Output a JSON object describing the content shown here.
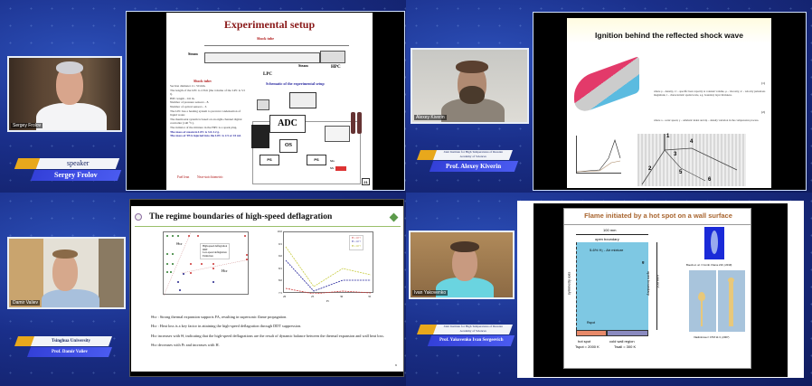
{
  "panels": [
    {
      "participant": "Sergey Frolov",
      "role": "speaker",
      "name_plate": "Sergey Frolov",
      "slide": {
        "title": "Experimental setup",
        "subtitle": "Shock tube",
        "labels": [
          "Steam",
          "LPC",
          "Steam",
          "HPC"
        ],
        "schematic_title": "Schematic of the experimental setup",
        "list_title": "Shock tube:",
        "bullets": [
          "Section diameter d = 50 mm.",
          "The length of the LPC is 2.8 m (the volume of the LPC is 5.5 l).",
          "HPC length - 0.6 m.",
          "Number of pressure sensors - 8.",
          "Number of optical sensors - 3.",
          "The LPC has a heating system to prevent condensation of liquid water.",
          "The thermostat system is based on an eight-channel digital controller (140 °C).",
          "The initiator of the mixture in the HPC is a spark plug.",
          "The mass of steam in LPC is 3.0-3.2 g.",
          "The mass of TEA injected into the LPC is 2.5 or 10 ml."
        ],
        "notes": [
          "Fuel lean",
          "Near-stoichiometric"
        ],
        "boxes": [
          "ADC",
          "OS",
          "PS",
          "PS"
        ],
        "sensor_labels": [
          "SG",
          "SS"
        ],
        "page": "21"
      }
    },
    {
      "participant": "Alexey Kiverin",
      "affiliation": "Joint Institute for High Temperatures of Russian Academy of Sciences",
      "name_plate": "Prof. Alexey Kiverin",
      "slide": {
        "title": "Ignition behind the reflected shock wave",
        "eq_numbers": [
          "(1)",
          "(2)"
        ],
        "text1": "where ρ – density, cv – specific heat capacity at constant volume, μ – viscosity, u' – velocity pulsations magnitude, l – characteristic spatial scale, e.g. boundary layer thickness.",
        "text2": "where a – sonic speed, γ – adiabatic index and dρ – density variation in the compression process.",
        "markers": [
          "1",
          "2",
          "3",
          "4",
          "5",
          "6"
        ]
      }
    },
    {
      "participant": "Damir Valiev",
      "affiliation": "Tsinghua University",
      "name_plate": "Prof. Damir Valiev",
      "slide": {
        "title": "The regime boundaries of high-speed deflagration",
        "legend1": [
          "High-speed deflagration",
          "DDT",
          "Low-speed deflagration",
          "Extinction"
        ],
        "legend2": [
          "H = 10⁻¹",
          "H = 10⁻²",
          "H = 10⁻³"
        ],
        "xticks2": [
          "20",
          "25",
          "30",
          "35"
        ],
        "xlabel2": "Pr",
        "yticks2": [
          "10.0",
          "9.5",
          "9.0",
          "8.5",
          "8.0",
          "7.5"
        ],
        "annot": [
          "Θcr",
          "Hcr"
        ],
        "bullets": [
          "Θcr : Strong thermal expansion supports FA, resulting in supersonic flame propagation.",
          "Hcr : Heat loss is a key factor in attaining the high-speed deflagration through DDT suppression.",
          "Hcr increases with Θ, indicating that the high-speed deflagrations are the result of dynamic balance between the thermal expansion and wall heat loss.",
          "Θcr decreases with Pr and increases with H."
        ],
        "page": "9"
      }
    },
    {
      "participant": "Ivan Yakovenko",
      "affiliation": "Joint Institute for High Temperatures of Russian Academy of Sciences",
      "name_plate": "Prof. Yakovenko Ivan Sergeevich",
      "slide": {
        "title": "Flame initiated by a hot spot on a wall surface",
        "width_label": "100 mm",
        "top_label": "open boundary",
        "mixture": "5-6% H₂ - Air mixture",
        "g": "g",
        "side_label": "open boundary",
        "height_label": "200 mm",
        "axis_label": "symmetry axis",
        "r_label": "Rspot",
        "hot": "hot spot",
        "hot_t": "Tspot = 2000 K",
        "cold": "cold wall region",
        "cold_t": "Twall = 300 K",
        "ref1": "Boeck et. al. // Comb. Flame 210, (2019)",
        "ref2": "Vladimirova // CTM 11:3, (2007)"
      }
    }
  ],
  "colors": {
    "background": "#1a2f8a",
    "nameplate_blue": "#3a48e0",
    "accent_yellow": "#e8a81c",
    "title_red": "#8a1a1a",
    "domain_blue": "#7ec8e3"
  }
}
